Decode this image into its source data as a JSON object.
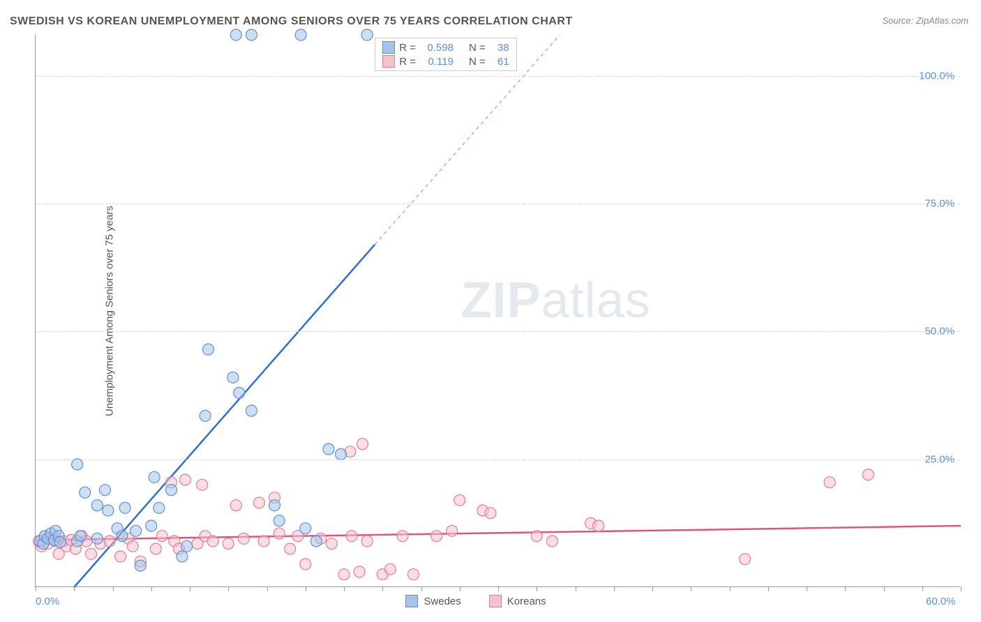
{
  "title": "SWEDISH VS KOREAN UNEMPLOYMENT AMONG SENIORS OVER 75 YEARS CORRELATION CHART",
  "source": "Source: ZipAtlas.com",
  "ylabel": "Unemployment Among Seniors over 75 years",
  "watermark_bold": "ZIP",
  "watermark_light": "atlas",
  "chart": {
    "type": "scatter-correlation",
    "xlim": [
      0,
      60
    ],
    "ylim": [
      0,
      108
    ],
    "x_tick_step": 2.5,
    "x_tick_labels": [
      {
        "v": 0,
        "label": "0.0%"
      },
      {
        "v": 60,
        "label": "60.0%"
      }
    ],
    "y_tick_labels": [
      {
        "v": 25,
        "label": "25.0%"
      },
      {
        "v": 50,
        "label": "50.0%"
      },
      {
        "v": 75,
        "label": "75.0%"
      },
      {
        "v": 100,
        "label": "100.0%"
      }
    ],
    "grid_color": "#d8d8d8",
    "background_color": "#ffffff",
    "axis_color": "#999999",
    "label_color": "#5c8fd6",
    "marker_radius": 8,
    "marker_opacity": 0.55,
    "series": [
      {
        "name": "Swedes",
        "fill": "#a6c4e8",
        "stroke": "#5c8fd6",
        "trend_color": "#2f6fd0",
        "trend_dash_color": "#9ab7d8",
        "trend": {
          "x1": 2.5,
          "y1": 0,
          "x2": 22,
          "y2": 67,
          "x2_dash": 34,
          "y2_dash": 108
        },
        "R": "0.598",
        "N": "38",
        "points": [
          [
            0.3,
            9.0
          ],
          [
            0.5,
            8.5
          ],
          [
            0.6,
            10.0
          ],
          [
            0.8,
            9.5
          ],
          [
            1.0,
            10.5
          ],
          [
            1.2,
            9.2
          ],
          [
            1.3,
            11.0
          ],
          [
            1.5,
            10.0
          ],
          [
            1.6,
            8.8
          ],
          [
            2.7,
            24.0
          ],
          [
            2.7,
            9.0
          ],
          [
            2.9,
            10.0
          ],
          [
            3.2,
            18.5
          ],
          [
            4.0,
            9.5
          ],
          [
            4.0,
            16.0
          ],
          [
            4.5,
            19.0
          ],
          [
            4.7,
            15.0
          ],
          [
            5.3,
            11.5
          ],
          [
            5.6,
            10.0
          ],
          [
            5.8,
            15.5
          ],
          [
            6.5,
            11.0
          ],
          [
            6.8,
            4.2
          ],
          [
            7.5,
            12.0
          ],
          [
            7.7,
            21.5
          ],
          [
            8.0,
            15.5
          ],
          [
            8.8,
            19.0
          ],
          [
            9.5,
            6.0
          ],
          [
            9.8,
            8.0
          ],
          [
            11.0,
            33.5
          ],
          [
            11.2,
            46.5
          ],
          [
            12.8,
            41.0
          ],
          [
            13.2,
            38.0
          ],
          [
            14.0,
            34.5
          ],
          [
            15.5,
            16.0
          ],
          [
            15.8,
            13.0
          ],
          [
            17.5,
            11.5
          ],
          [
            18.2,
            9.0
          ],
          [
            19.8,
            26.0
          ],
          [
            19.0,
            27.0
          ],
          [
            13.0,
            108.0
          ],
          [
            14.0,
            108.0
          ],
          [
            17.2,
            108.0
          ],
          [
            21.5,
            108.0
          ]
        ]
      },
      {
        "name": "Koreans",
        "fill": "#f4c2cd",
        "stroke": "#e77a94",
        "trend_color": "#e05577",
        "trend": {
          "x1": 0,
          "y1": 9.2,
          "x2": 60,
          "y2": 12.0
        },
        "R": "0.119",
        "N": "61",
        "points": [
          [
            0.2,
            9.0
          ],
          [
            0.4,
            8.0
          ],
          [
            0.6,
            10.0
          ],
          [
            0.8,
            8.5
          ],
          [
            1.0,
            9.5
          ],
          [
            1.2,
            10.0
          ],
          [
            1.3,
            9.0
          ],
          [
            1.5,
            6.5
          ],
          [
            1.8,
            9.0
          ],
          [
            2.0,
            8.0
          ],
          [
            2.3,
            9.2
          ],
          [
            2.6,
            7.5
          ],
          [
            3.0,
            10.0
          ],
          [
            3.3,
            9.0
          ],
          [
            3.6,
            6.5
          ],
          [
            4.2,
            8.5
          ],
          [
            4.8,
            9.0
          ],
          [
            5.5,
            6.0
          ],
          [
            6.0,
            9.5
          ],
          [
            6.3,
            8.0
          ],
          [
            6.8,
            5.0
          ],
          [
            7.8,
            7.5
          ],
          [
            8.2,
            10.0
          ],
          [
            8.8,
            20.5
          ],
          [
            9.0,
            9.0
          ],
          [
            9.3,
            7.5
          ],
          [
            9.7,
            21.0
          ],
          [
            10.5,
            8.5
          ],
          [
            10.8,
            20.0
          ],
          [
            11.0,
            10.0
          ],
          [
            11.5,
            9.0
          ],
          [
            12.5,
            8.5
          ],
          [
            13.0,
            16.0
          ],
          [
            13.5,
            9.5
          ],
          [
            14.5,
            16.5
          ],
          [
            14.8,
            9.0
          ],
          [
            15.5,
            17.5
          ],
          [
            15.8,
            10.5
          ],
          [
            16.5,
            7.5
          ],
          [
            17.0,
            10.0
          ],
          [
            17.5,
            4.5
          ],
          [
            18.5,
            9.5
          ],
          [
            19.2,
            8.5
          ],
          [
            20.0,
            2.5
          ],
          [
            20.4,
            26.5
          ],
          [
            20.5,
            10.0
          ],
          [
            21.0,
            3.0
          ],
          [
            21.2,
            28.0
          ],
          [
            21.5,
            9.0
          ],
          [
            22.5,
            2.5
          ],
          [
            23.0,
            3.5
          ],
          [
            23.8,
            10.0
          ],
          [
            24.5,
            2.5
          ],
          [
            26.0,
            10.0
          ],
          [
            27.0,
            11.0
          ],
          [
            27.5,
            17.0
          ],
          [
            29.0,
            15.0
          ],
          [
            29.5,
            14.5
          ],
          [
            32.5,
            10.0
          ],
          [
            33.5,
            9.0
          ],
          [
            36.0,
            12.5
          ],
          [
            36.5,
            12.0
          ],
          [
            46.0,
            5.5
          ],
          [
            51.5,
            20.5
          ],
          [
            54.0,
            22.0
          ]
        ]
      }
    ]
  },
  "stats_legend": {
    "rows": [
      {
        "swatch_fill": "#a6c4e8",
        "swatch_stroke": "#5c8fd6",
        "r_label": "R =",
        "r_val": "0.598",
        "n_label": "N =",
        "n_val": "38"
      },
      {
        "swatch_fill": "#f4c2cd",
        "swatch_stroke": "#e77a94",
        "r_label": "R =",
        "r_val": "0.119",
        "n_label": "N =",
        "n_val": "61"
      }
    ]
  },
  "bottom_legend": [
    {
      "swatch_fill": "#a6c4e8",
      "swatch_stroke": "#5c8fd6",
      "label": "Swedes"
    },
    {
      "swatch_fill": "#f4c2cd",
      "swatch_stroke": "#e77a94",
      "label": "Koreans"
    }
  ]
}
